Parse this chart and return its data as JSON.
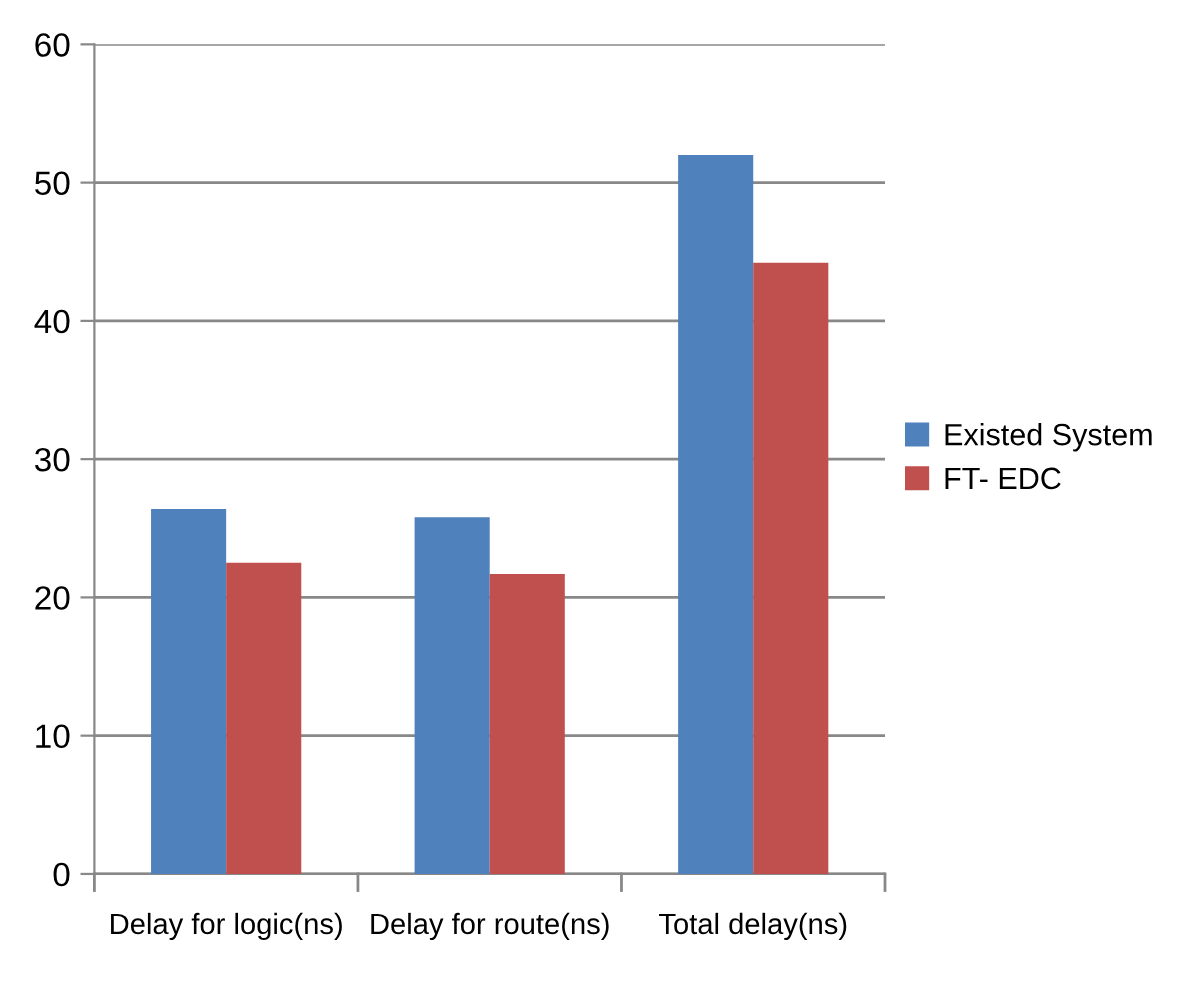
{
  "chart_data": {
    "type": "bar",
    "categories": [
      "Delay for logic(ns)",
      "Delay for route(ns)",
      "Total delay(ns)"
    ],
    "series": [
      {
        "name": "Existed System",
        "color": "#4f81bd",
        "values": [
          26.4,
          25.8,
          52.0
        ]
      },
      {
        "name": "FT- EDC",
        "color": "#c0504d",
        "values": [
          22.5,
          21.7,
          44.2
        ]
      }
    ],
    "ylim": [
      0,
      60
    ],
    "yticks": [
      0,
      10,
      20,
      30,
      40,
      50,
      60
    ],
    "grid": "y",
    "legend": "right"
  }
}
